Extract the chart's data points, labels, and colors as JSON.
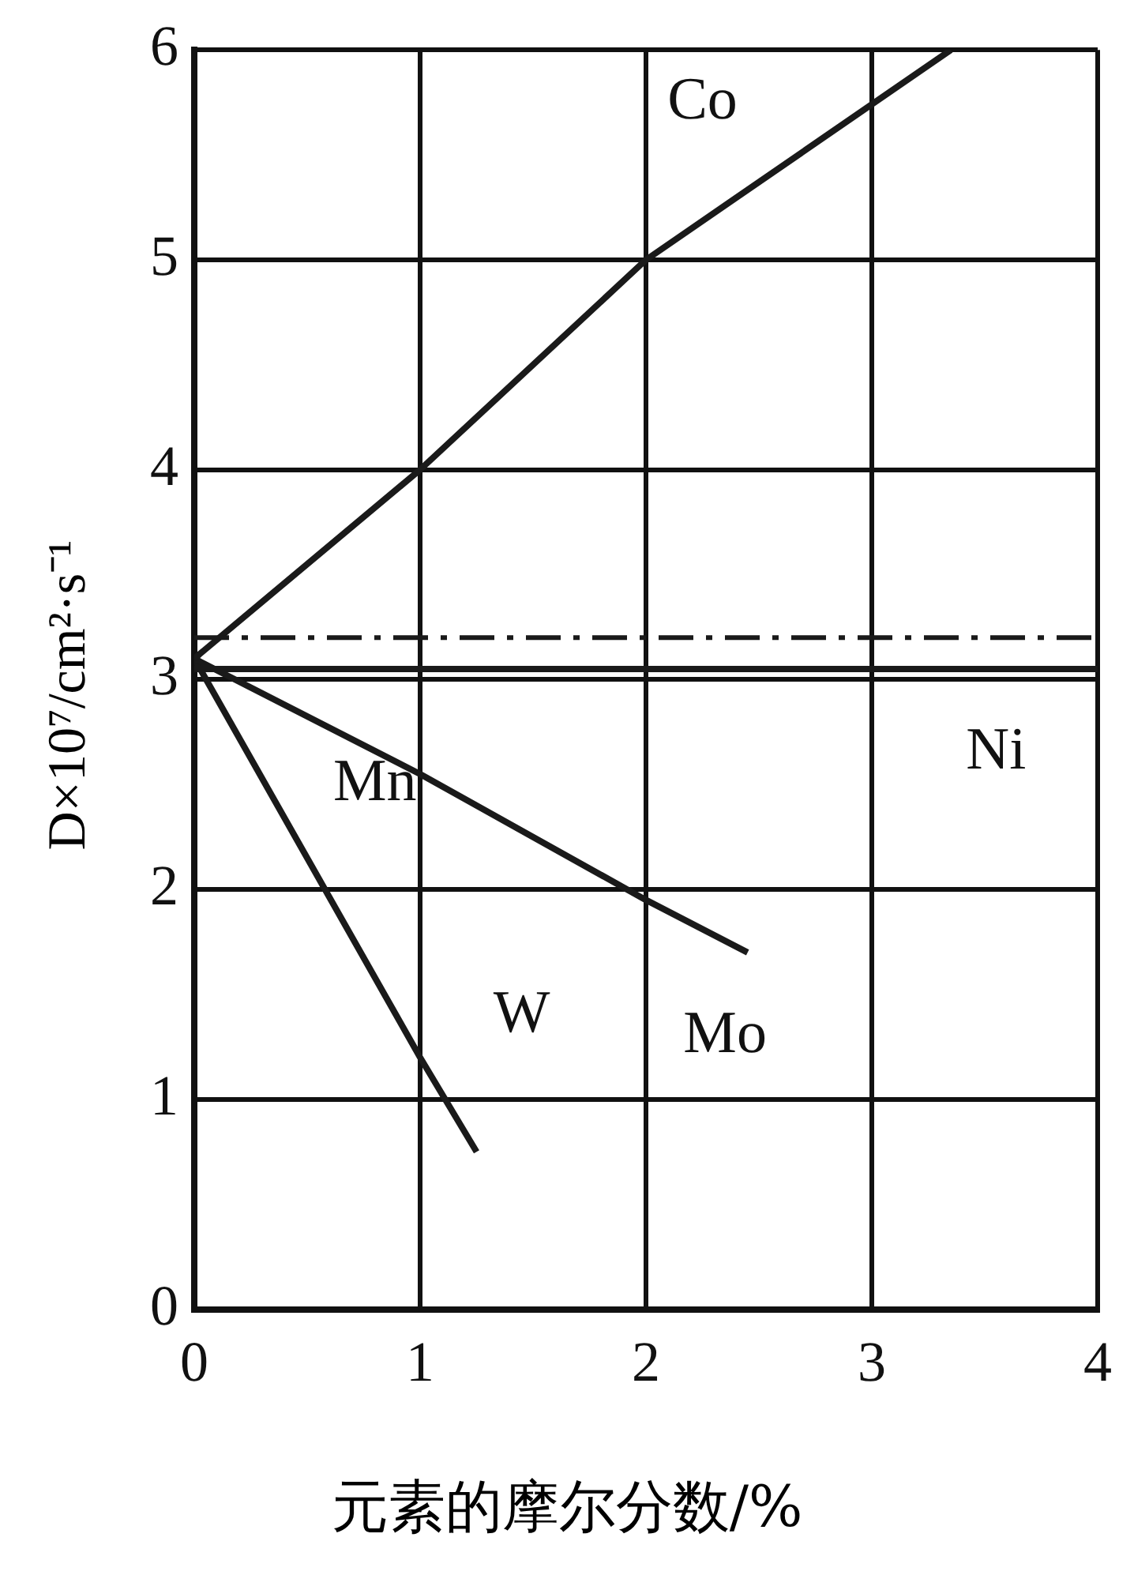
{
  "chart_data": {
    "type": "line",
    "xlabel": "元素的摩尔分数/%",
    "ylabel": "D×10⁷/cm²·s⁻¹",
    "xlim": [
      0,
      4
    ],
    "xticks": [
      0,
      1,
      2,
      3,
      4
    ],
    "ylim": [
      0,
      6
    ],
    "yticks": [
      0,
      1,
      2,
      3,
      4,
      5,
      6
    ],
    "grid": true,
    "legend": false,
    "marker": "none",
    "line_style": "solid",
    "series": [
      {
        "name": "Co",
        "color": "#1a1a1a",
        "x": [
          0,
          1,
          2,
          3.35
        ],
        "values": [
          3.1,
          4,
          5,
          6
        ]
      },
      {
        "name": "Ni",
        "color": "#1a1a1a",
        "x": [
          0,
          4
        ],
        "values": [
          3.05,
          3.05
        ]
      },
      {
        "name": "Mo",
        "color": "#1a1a1a",
        "x": [
          0,
          1,
          2,
          2.45
        ],
        "values": [
          3.1,
          2.55,
          1.95,
          1.7
        ]
      },
      {
        "name": "W",
        "color": "#1a1a1a",
        "x": [
          0,
          1,
          1.25
        ],
        "values": [
          3.1,
          1.2,
          0.75
        ]
      }
    ],
    "ref_lines": [
      {
        "axis": "y",
        "value": 3.2,
        "label": null,
        "line_style": "dashed",
        "color": "#1a1a1a"
      }
    ],
    "annotations": [
      "Mn"
    ]
  }
}
